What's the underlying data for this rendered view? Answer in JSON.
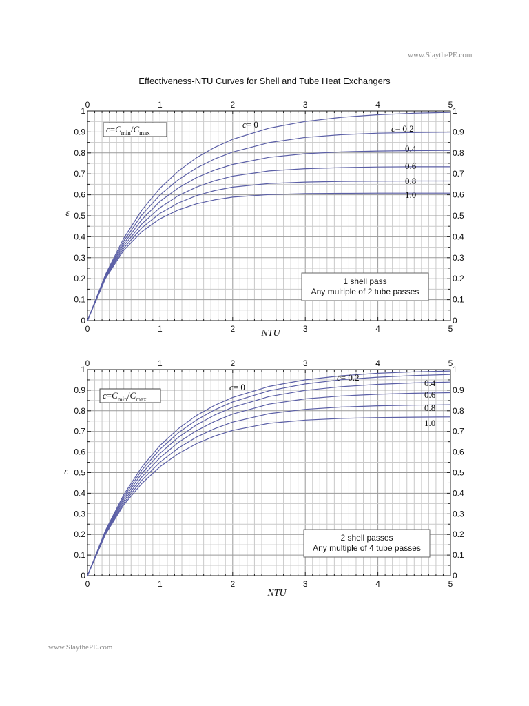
{
  "watermark_top": "www.SlaythePE.com",
  "watermark_bottom": "www.SlaythePE.com",
  "title": "Effectiveness-NTU Curves for Shell and Tube Heat Exchangers",
  "chart_data": [
    {
      "type": "line",
      "xlabel": "NTU",
      "ylabel": "ε",
      "xlim": [
        0,
        5
      ],
      "ylim": [
        0,
        1
      ],
      "x_ticks": [
        "0",
        "1",
        "2",
        "3",
        "4",
        "5"
      ],
      "y_ticks": [
        "0",
        "0.1",
        "0.2",
        "0.3",
        "0.4",
        "0.5",
        "0.6",
        "0.7",
        "0.8",
        "0.9",
        "1"
      ],
      "grid": true,
      "definition_box": {
        "c": "c",
        "eq": "=",
        "C": "C",
        "min": "min",
        "slash": "/",
        "max": "max"
      },
      "info_box": [
        "1 shell pass",
        "Any multiple of 2 tube passes"
      ],
      "x": [
        0,
        0.25,
        0.5,
        0.75,
        1.0,
        1.25,
        1.5,
        1.75,
        2.0,
        2.5,
        3.0,
        3.5,
        4.0,
        4.5,
        5.0
      ],
      "series": [
        {
          "name": "c = 0",
          "values": [
            0,
            0.221,
            0.393,
            0.528,
            0.632,
            0.713,
            0.777,
            0.826,
            0.865,
            0.918,
            0.95,
            0.97,
            0.982,
            0.989,
            0.993
          ]
        },
        {
          "name": "0.2",
          "values": [
            0,
            0.217,
            0.38,
            0.505,
            0.6,
            0.672,
            0.728,
            0.771,
            0.804,
            0.849,
            0.874,
            0.887,
            0.894,
            0.897,
            0.899
          ]
        },
        {
          "name": "0.4",
          "values": [
            0,
            0.213,
            0.368,
            0.483,
            0.569,
            0.633,
            0.682,
            0.718,
            0.745,
            0.779,
            0.796,
            0.805,
            0.809,
            0.811,
            0.812
          ]
        },
        {
          "name": "0.6",
          "values": [
            0,
            0.209,
            0.357,
            0.462,
            0.539,
            0.596,
            0.637,
            0.667,
            0.689,
            0.714,
            0.725,
            0.73,
            0.733,
            0.734,
            0.734
          ]
        },
        {
          "name": "0.8",
          "values": [
            0,
            0.206,
            0.346,
            0.443,
            0.512,
            0.561,
            0.596,
            0.62,
            0.637,
            0.654,
            0.661,
            0.664,
            0.665,
            0.666,
            0.666
          ]
        },
        {
          "name": "1.0",
          "values": [
            0,
            0.202,
            0.336,
            0.425,
            0.486,
            0.528,
            0.557,
            0.576,
            0.589,
            0.601,
            0.606,
            0.607,
            0.608,
            0.608,
            0.608
          ]
        }
      ],
      "labels": [
        {
          "text": "c",
          "text2": "= 0",
          "series": 0
        },
        {
          "text": "c",
          "text2": "= 0.2",
          "series": 1
        },
        {
          "text": "0.4",
          "series": 2
        },
        {
          "text": "0.6",
          "series": 3
        },
        {
          "text": "0.8",
          "series": 4
        },
        {
          "text": "1.0",
          "series": 5
        }
      ]
    },
    {
      "type": "line",
      "xlabel": "NTU",
      "ylabel": "ε",
      "xlim": [
        0,
        5
      ],
      "ylim": [
        0,
        1
      ],
      "x_ticks": [
        "0",
        "1",
        "2",
        "3",
        "4",
        "5"
      ],
      "y_ticks": [
        "0",
        "0.1",
        "0.2",
        "0.3",
        "0.4",
        "0.5",
        "0.6",
        "0.7",
        "0.8",
        "0.9",
        "1"
      ],
      "grid": true,
      "definition_box": {
        "c": "c",
        "eq": "=",
        "C": "C",
        "min": "min",
        "slash": "/",
        "max": "max"
      },
      "info_box": [
        "2 shell passes",
        "Any multiple of 4 tube passes"
      ],
      "x": [
        0,
        0.25,
        0.5,
        0.75,
        1.0,
        1.25,
        1.5,
        1.75,
        2.0,
        2.5,
        3.0,
        3.5,
        4.0,
        4.5,
        5.0
      ],
      "series": [
        {
          "name": "c = 0",
          "values": [
            0,
            0.221,
            0.393,
            0.528,
            0.632,
            0.713,
            0.777,
            0.826,
            0.865,
            0.918,
            0.95,
            0.97,
            0.982,
            0.989,
            0.993
          ]
        },
        {
          "name": "0.2",
          "values": [
            0,
            0.217,
            0.383,
            0.513,
            0.614,
            0.693,
            0.755,
            0.804,
            0.843,
            0.897,
            0.93,
            0.951,
            0.963,
            0.971,
            0.976
          ]
        },
        {
          "name": "0.4",
          "values": [
            0,
            0.213,
            0.373,
            0.497,
            0.594,
            0.671,
            0.731,
            0.779,
            0.817,
            0.869,
            0.899,
            0.917,
            0.928,
            0.935,
            0.939
          ]
        },
        {
          "name": "0.6",
          "values": [
            0,
            0.209,
            0.363,
            0.48,
            0.573,
            0.646,
            0.703,
            0.748,
            0.784,
            0.832,
            0.858,
            0.872,
            0.88,
            0.885,
            0.888
          ]
        },
        {
          "name": "0.8",
          "values": [
            0,
            0.206,
            0.353,
            0.464,
            0.551,
            0.619,
            0.672,
            0.713,
            0.745,
            0.786,
            0.807,
            0.818,
            0.824,
            0.827,
            0.829
          ]
        },
        {
          "name": "1.0",
          "values": [
            0,
            0.202,
            0.344,
            0.448,
            0.529,
            0.592,
            0.64,
            0.677,
            0.705,
            0.739,
            0.755,
            0.763,
            0.767,
            0.769,
            0.77
          ]
        }
      ],
      "labels": [
        {
          "text": "c",
          "text2": "= 0",
          "series": 0
        },
        {
          "text": "c",
          "text2": "= 0.2",
          "series": 1
        },
        {
          "text": "0.4",
          "series": 2
        },
        {
          "text": "0.6",
          "series": 3
        },
        {
          "text": "0.8",
          "series": 4
        },
        {
          "text": "1.0",
          "series": 5
        }
      ]
    }
  ]
}
